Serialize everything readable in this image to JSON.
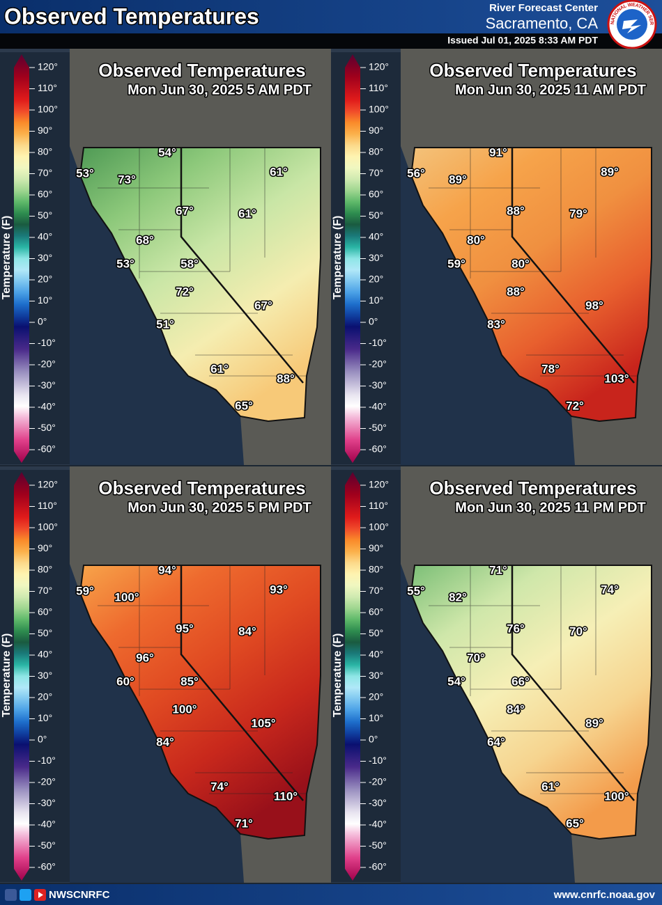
{
  "header": {
    "title": "Observed Temperatures",
    "agency": "River Forecast Center",
    "office": "Sacramento, CA",
    "issued": "Issued Jul 01, 2025 8:33 AM PDT",
    "logo_text": "NATIONAL WEATHER SERVICE"
  },
  "panels": [
    {
      "title": "Observed Temperatures",
      "subtitle": "Mon Jun 30, 2025 5 AM PDT",
      "legend": {
        "label": "Temperature (F)",
        "ticks": [
          "120°",
          "110°",
          "100°",
          "90°",
          "80°",
          "70°",
          "60°",
          "50°",
          "40°",
          "30°",
          "20°",
          "10°",
          "0°",
          "-10°",
          "-20°",
          "-30°",
          "-40°",
          "-50°",
          "-60°"
        ]
      },
      "labels": [
        "54°",
        "53°",
        "73°",
        "61°",
        "67°",
        "61°",
        "68°",
        "53°",
        "58°",
        "72°",
        "67°",
        "51°",
        "61°",
        "88°",
        "65°"
      ]
    },
    {
      "title": "Observed Temperatures",
      "subtitle": "Mon Jun 30, 2025 11 AM PDT",
      "legend": {
        "label": "Temperature (F)",
        "ticks": [
          "120°",
          "110°",
          "100°",
          "90°",
          "80°",
          "70°",
          "60°",
          "50°",
          "40°",
          "30°",
          "20°",
          "10°",
          "0°",
          "-10°",
          "-20°",
          "-30°",
          "-40°",
          "-50°",
          "-60°"
        ]
      },
      "labels": [
        "91°",
        "56°",
        "89°",
        "89°",
        "88°",
        "79°",
        "80°",
        "59°",
        "80°",
        "88°",
        "98°",
        "83°",
        "78°",
        "103°",
        "72°"
      ]
    },
    {
      "title": "Observed Temperatures",
      "subtitle": "Mon Jun 30, 2025 5 PM PDT",
      "legend": {
        "label": "Temperature (F)",
        "ticks": [
          "120°",
          "110°",
          "100°",
          "90°",
          "80°",
          "70°",
          "60°",
          "50°",
          "40°",
          "30°",
          "20°",
          "10°",
          "0°",
          "-10°",
          "-20°",
          "-30°",
          "-40°",
          "-50°",
          "-60°"
        ]
      },
      "labels": [
        "94°",
        "59°",
        "100°",
        "93°",
        "95°",
        "84°",
        "96°",
        "60°",
        "85°",
        "100°",
        "105°",
        "84°",
        "74°",
        "110°",
        "71°"
      ]
    },
    {
      "title": "Observed Temperatures",
      "subtitle": "Mon Jun 30, 2025 11 PM PDT",
      "legend": {
        "label": "Temperature (F)",
        "ticks": [
          "120°",
          "110°",
          "100°",
          "90°",
          "80°",
          "70°",
          "60°",
          "50°",
          "40°",
          "30°",
          "20°",
          "10°",
          "0°",
          "-10°",
          "-20°",
          "-30°",
          "-40°",
          "-50°",
          "-60°"
        ]
      },
      "labels": [
        "71°",
        "55°",
        "82°",
        "74°",
        "76°",
        "70°",
        "70°",
        "54°",
        "66°",
        "84°",
        "89°",
        "64°",
        "61°",
        "100°",
        "65°"
      ]
    }
  ],
  "footer": {
    "handle": "NWSCNRFC",
    "url": "www.cnrfc.noaa.gov"
  }
}
